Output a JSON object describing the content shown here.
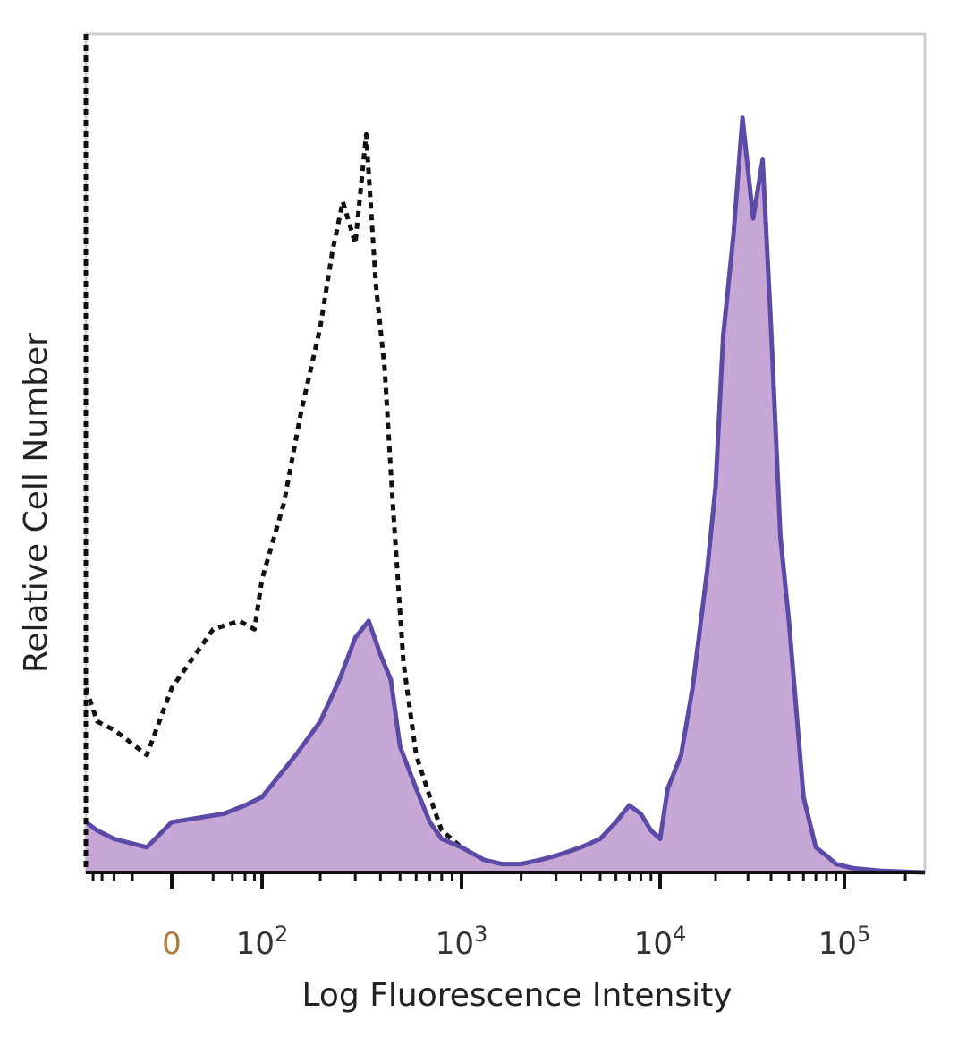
{
  "chart_data": {
    "type": "area",
    "title": "",
    "xlabel": "Log Fluorescence Intensity",
    "ylabel": "Relative Cell Number",
    "x_scale": "biexponential",
    "xlim": [
      -100,
      250000
    ],
    "ylim": [
      0,
      100
    ],
    "x_ticks": [
      {
        "value": 0,
        "label": "0",
        "exp": ""
      },
      {
        "value": 100,
        "label": "10",
        "exp": "2"
      },
      {
        "value": 1000,
        "label": "10",
        "exp": "3"
      },
      {
        "value": 10000,
        "label": "10",
        "exp": "4"
      },
      {
        "value": 100000,
        "label": "10",
        "exp": "5"
      }
    ],
    "grid": false,
    "legend": "none",
    "series": [
      {
        "style": "dashed-outline",
        "color": "#111111",
        "x": [
          -100,
          -70,
          -40,
          -10,
          0,
          20,
          50,
          80,
          100,
          130,
          160,
          200,
          230,
          260,
          300,
          340,
          380,
          420,
          460,
          520,
          600,
          700,
          800,
          1000,
          1300,
          1800,
          3000
        ],
        "y": [
          22,
          18,
          17,
          14,
          22,
          29,
          30,
          29,
          35,
          44,
          55,
          65,
          74,
          80,
          75,
          88,
          70,
          60,
          44,
          25,
          14,
          9,
          5,
          3,
          1,
          0.5,
          0
        ]
      },
      {
        "style": "filled",
        "color": "#5b4aa6",
        "fill": "#c7a7d6",
        "x": [
          -100,
          -70,
          -40,
          -10,
          0,
          30,
          60,
          100,
          150,
          200,
          250,
          300,
          350,
          400,
          450,
          500,
          600,
          700,
          800,
          1000,
          1300,
          1600,
          2000,
          2500,
          3000,
          4000,
          5000,
          6000,
          7000,
          8000,
          9000,
          10000,
          11000,
          13000,
          15000,
          18000,
          20000,
          22000,
          25000,
          28000,
          32000,
          36000,
          40000,
          45000,
          50000,
          60000,
          70000,
          80000,
          90000,
          110000,
          150000,
          250000
        ],
        "y": [
          6,
          5,
          4,
          3,
          6,
          7,
          8,
          9,
          14,
          18,
          23,
          28,
          30,
          26,
          23,
          15,
          10,
          6,
          4,
          3,
          1.5,
          1,
          1,
          1.5,
          2,
          3,
          4,
          6,
          8,
          7,
          5,
          4,
          10,
          14,
          22,
          36,
          46,
          64,
          76,
          90,
          78,
          85,
          65,
          40,
          30,
          9,
          3,
          2,
          1,
          0.5,
          0.2,
          0
        ]
      }
    ]
  }
}
